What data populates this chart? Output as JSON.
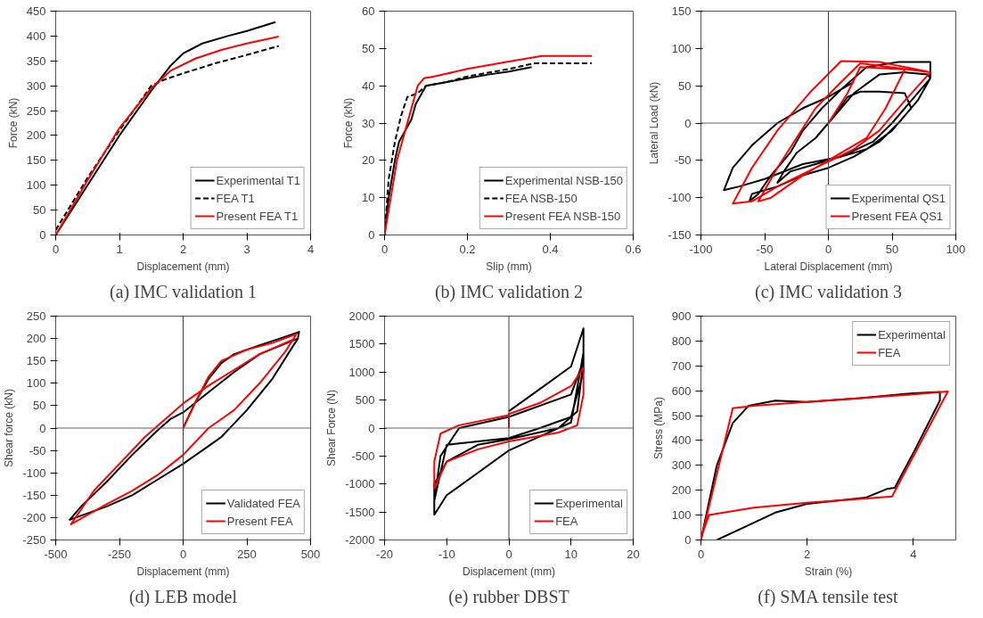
{
  "chart_data": [
    {
      "type": "line",
      "title": "(a) IMC validation 1",
      "xlabel": "Displacement (mm)",
      "ylabel": "Force (kN)",
      "xlim": [
        0,
        4
      ],
      "xticks": [
        0,
        1,
        2,
        3,
        4
      ],
      "ylim": [
        0,
        450
      ],
      "yticks": [
        0,
        50,
        100,
        150,
        200,
        250,
        300,
        350,
        400,
        450
      ],
      "legend": "bottom right",
      "series": [
        {
          "name": "Experimental T1",
          "color": "#000000",
          "line_style": "solid",
          "x": [
            0,
            0.5,
            1,
            1.5,
            1.8,
            2,
            2.3,
            2.7,
            3,
            3.45
          ],
          "values": [
            0,
            100,
            200,
            290,
            340,
            365,
            385,
            400,
            410,
            428
          ]
        },
        {
          "name": "FEA T1",
          "color": "#000000",
          "line_style": "dashed",
          "x": [
            0,
            0.5,
            1,
            1.5,
            1.7,
            2,
            2.5,
            3,
            3.5
          ],
          "values": [
            10,
            115,
            210,
            300,
            312,
            325,
            345,
            362,
            380
          ]
        },
        {
          "name": "Present FEA T1",
          "color": "#ff0000",
          "line_style": "solid",
          "x": [
            0,
            0.5,
            1,
            1.5,
            1.8,
            2.2,
            2.6,
            3,
            3.5
          ],
          "values": [
            0,
            110,
            215,
            295,
            330,
            355,
            372,
            385,
            399
          ]
        }
      ]
    },
    {
      "type": "line",
      "title": "(b) IMC validation 2",
      "xlabel": "Slip (mm)",
      "ylabel": "Force (kN)",
      "xlim": [
        0,
        0.6
      ],
      "xticks": [
        0,
        0.2,
        0.4,
        0.6
      ],
      "ylim": [
        0,
        60
      ],
      "yticks": [
        0,
        10,
        20,
        30,
        40,
        50,
        60
      ],
      "legend": "bottom right",
      "series": [
        {
          "name": "Experimental NSB-150",
          "color": "#000000",
          "line_style": "solid",
          "x": [
            0,
            0.01,
            0.025,
            0.035,
            0.05,
            0.065,
            0.075,
            0.09,
            0.1,
            0.15,
            0.2,
            0.25,
            0.3,
            0.355
          ],
          "values": [
            0,
            10,
            20,
            25,
            28,
            31,
            35,
            38,
            40,
            41,
            42,
            43,
            43.8,
            45
          ]
        },
        {
          "name": "FEA NSB-150",
          "color": "#000000",
          "line_style": "dashed",
          "x": [
            0,
            0.01,
            0.025,
            0.04,
            0.055,
            0.08,
            0.1,
            0.15,
            0.2,
            0.3,
            0.36,
            0.5
          ],
          "values": [
            0,
            15,
            25,
            32,
            37,
            38,
            40,
            41,
            42.5,
            44.5,
            46,
            46
          ]
        },
        {
          "name": "Present FEA NSB-150",
          "color": "#ff0000",
          "line_style": "solid",
          "x": [
            0,
            0.03,
            0.06,
            0.08,
            0.095,
            0.12,
            0.2,
            0.3,
            0.38,
            0.5
          ],
          "values": [
            0,
            20,
            32,
            40,
            42,
            42.5,
            44.5,
            46.5,
            48,
            48
          ]
        }
      ]
    },
    {
      "type": "line",
      "title": "(c) IMC validation 3",
      "xlabel": "Lateral Displacement (mm)",
      "ylabel": "Lateral Load (kN)",
      "xlim": [
        -100,
        100
      ],
      "xticks": [
        -100,
        -50,
        0,
        50,
        100
      ],
      "ylim": [
        -150,
        150
      ],
      "yticks": [
        -150,
        -100,
        -50,
        0,
        50,
        100,
        150
      ],
      "legend": "bottom right",
      "ref_lines": [
        {
          "axis": "x",
          "value": 0,
          "color": "#404040"
        },
        {
          "axis": "y",
          "value": 0,
          "color": "#606060"
        }
      ],
      "series": [
        {
          "name": "Experimental QS1",
          "color": "#000000",
          "line_style": "solid",
          "x": [
            0,
            15,
            25,
            40,
            60,
            65,
            50,
            30,
            10,
            -10,
            -30,
            -40,
            -35,
            -25,
            -10,
            0,
            20,
            40,
            60,
            78,
            80,
            70,
            55,
            40,
            20,
            0,
            -20,
            -40,
            -60,
            -62,
            -55,
            -45,
            -30,
            -20,
            -5,
            10,
            30,
            55,
            80,
            80,
            65,
            50,
            35,
            10,
            -20,
            -50,
            -70,
            -82,
            -75,
            -60,
            -40,
            -20,
            0,
            20
          ],
          "values": [
            0,
            35,
            42,
            42,
            40,
            20,
            -10,
            -35,
            -45,
            -55,
            -65,
            -80,
            -65,
            -40,
            -20,
            0,
            40,
            65,
            68,
            65,
            60,
            30,
            0,
            -25,
            -45,
            -60,
            -70,
            -85,
            -95,
            -105,
            -95,
            -70,
            -40,
            -10,
            20,
            45,
            75,
            82,
            82,
            60,
            30,
            0,
            -25,
            -45,
            -55,
            -75,
            -85,
            -90,
            -60,
            -30,
            0,
            20,
            35,
            55
          ]
        },
        {
          "name": "Present FEA QS1",
          "color": "#ff0000",
          "line_style": "solid",
          "x": [
            0,
            15,
            25,
            60,
            45,
            30,
            10,
            -20,
            -45,
            -55,
            -40,
            -25,
            -10,
            10,
            25,
            80,
            60,
            40,
            20,
            -10,
            -40,
            -60,
            -75,
            -60,
            -40,
            -15,
            10,
            40,
            75,
            80
          ],
          "values": [
            0,
            40,
            75,
            72,
            20,
            -20,
            -40,
            -70,
            -100,
            -105,
            -60,
            -20,
            20,
            55,
            80,
            68,
            30,
            -10,
            -35,
            -60,
            -85,
            -105,
            -108,
            -60,
            -10,
            40,
            83,
            82,
            70,
            68
          ]
        }
      ]
    },
    {
      "type": "line",
      "title": "(d) LEB model",
      "xlabel": "Displacement (mm)",
      "ylabel": "Shear force (kN)",
      "xlim": [
        -500,
        500
      ],
      "xticks": [
        -500,
        -250,
        0,
        250,
        500
      ],
      "ylim": [
        -250,
        250
      ],
      "yticks": [
        -250,
        -200,
        -150,
        -100,
        -50,
        0,
        50,
        100,
        150,
        200,
        250
      ],
      "legend": "bottom right",
      "ref_lines": [
        {
          "axis": "x",
          "value": 0,
          "color": "#404040"
        },
        {
          "axis": "y",
          "value": 0,
          "color": "#606060"
        }
      ],
      "series": [
        {
          "name": "Validated FEA",
          "color": "#000000",
          "line_style": "solid",
          "x": [
            0,
            50,
            100,
            150,
            200,
            300,
            380,
            455,
            450,
            350,
            250,
            150,
            100,
            0,
            -100,
            -200,
            -300,
            -445,
            -400,
            -300,
            -200,
            -100,
            -50,
            0,
            100,
            200,
            300,
            450
          ],
          "values": [
            0,
            60,
            110,
            145,
            165,
            185,
            200,
            215,
            200,
            110,
            40,
            -20,
            -40,
            -80,
            -115,
            -150,
            -175,
            -205,
            -175,
            -120,
            -60,
            -5,
            20,
            35,
            80,
            125,
            165,
            200
          ]
        },
        {
          "name": "Present FEA",
          "color": "#ff0000",
          "line_style": "solid",
          "x": [
            0,
            50,
            100,
            150,
            250,
            350,
            445,
            400,
            300,
            200,
            100,
            0,
            -100,
            -200,
            -300,
            -440,
            -350,
            -250,
            -150,
            -50,
            0,
            100,
            200,
            300,
            440
          ],
          "values": [
            0,
            60,
            115,
            150,
            175,
            190,
            210,
            170,
            100,
            40,
            0,
            -60,
            -105,
            -140,
            -170,
            -215,
            -140,
            -80,
            -20,
            30,
            55,
            95,
            130,
            165,
            200
          ]
        }
      ]
    },
    {
      "type": "line",
      "title": "(e) rubber DBST",
      "xlabel": "Displacement (mm)",
      "ylabel": "Shear Force (N)",
      "xlim": [
        -20,
        20
      ],
      "xticks": [
        -20,
        -10,
        0,
        10,
        20
      ],
      "ylim": [
        -2000,
        2000
      ],
      "yticks": [
        -2000,
        -1500,
        -1000,
        -500,
        0,
        500,
        1000,
        1500,
        2000
      ],
      "legend": "bottom right",
      "ref_lines": [
        {
          "axis": "x",
          "value": 0,
          "color": "#404040"
        },
        {
          "axis": "y",
          "value": 0,
          "color": "#606060"
        }
      ],
      "series": [
        {
          "name": "Experimental",
          "color": "#000000",
          "line_style": "solid",
          "x": [
            0,
            5,
            10,
            12,
            12,
            11,
            8,
            0,
            -5,
            -10,
            -12,
            -12,
            -10,
            -5,
            0,
            5,
            10,
            12,
            12,
            10,
            5,
            0,
            -10,
            -12,
            -11,
            -8,
            0,
            10,
            12
          ],
          "values": [
            300,
            700,
            1100,
            1780,
            1200,
            300,
            0,
            -200,
            -300,
            -600,
            -1000,
            -1550,
            -1200,
            -800,
            -400,
            -150,
            100,
            1350,
            1000,
            200,
            0,
            -180,
            -300,
            -1300,
            -500,
            0,
            200,
            600,
            1200
          ]
        },
        {
          "name": "FEA",
          "color": "#ff0000",
          "line_style": "solid",
          "x": [
            0,
            0,
            5,
            10,
            12,
            12,
            11,
            8,
            0,
            -5,
            -10,
            -12,
            -12,
            -11,
            -8,
            0
          ],
          "values": [
            0,
            250,
            450,
            750,
            1080,
            600,
            50,
            -80,
            -240,
            -380,
            -600,
            -1080,
            -600,
            -100,
            50,
            230
          ]
        }
      ]
    },
    {
      "type": "line",
      "title": "(f) SMA tensile test",
      "xlabel": "Strain (%)",
      "ylabel": "Stress (MPa)",
      "xlim": [
        0,
        4.8
      ],
      "xticks": [
        0,
        2,
        4
      ],
      "ylim": [
        0,
        900
      ],
      "yticks": [
        0,
        100,
        200,
        300,
        400,
        500,
        600,
        700,
        800,
        900
      ],
      "legend": "top right",
      "series": [
        {
          "name": "Experimental",
          "color": "#000000",
          "line_style": "solid",
          "x": [
            0,
            0.3,
            0.6,
            0.9,
            1.4,
            2,
            3,
            4,
            4.5,
            4.5,
            4,
            3.65,
            3.5,
            3.1,
            2,
            1.4,
            0.8,
            0.3
          ],
          "values": [
            0,
            300,
            470,
            540,
            560,
            555,
            570,
            590,
            595,
            560,
            350,
            210,
            205,
            170,
            145,
            110,
            50,
            0
          ]
        },
        {
          "name": "FEA",
          "color": "#ff0000",
          "line_style": "solid",
          "x": [
            0,
            0.6,
            1,
            2,
            3,
            4,
            4.65,
            3.6,
            3,
            2,
            1,
            0.15,
            0.02
          ],
          "values": [
            0,
            530,
            540,
            555,
            570,
            585,
            597,
            175,
            165,
            150,
            130,
            100,
            20
          ]
        }
      ]
    }
  ]
}
